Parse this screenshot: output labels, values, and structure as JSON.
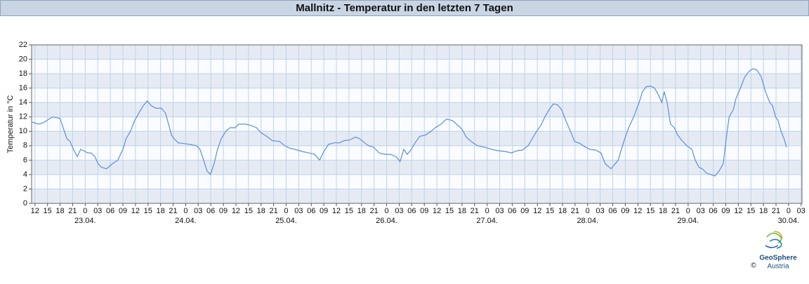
{
  "chart_data": {
    "type": "line",
    "title": "Mallnitz - Temperatur in den letzten 7 Tagen",
    "y_label": "Temperatur in °C",
    "color": "#5b8ee0",
    "grid": true,
    "band_color": "#e6ebf3",
    "grid_color": "#bcd2ec",
    "xlim": [
      11.2,
      195.2
    ],
    "ylim": [
      0,
      22
    ],
    "yticks": [
      0,
      2,
      4,
      6,
      8,
      10,
      12,
      14,
      16,
      18,
      20,
      22
    ],
    "xticks": [
      12,
      15,
      18,
      21,
      {
        "value": 24,
        "label": "0"
      },
      {
        "value": 27,
        "label": "03"
      },
      {
        "value": 30,
        "label": "06"
      },
      {
        "value": 33,
        "label": "09"
      },
      {
        "value": 36,
        "label": "12"
      },
      {
        "value": 39,
        "label": "15"
      },
      {
        "value": 42,
        "label": "18"
      },
      {
        "value": 45,
        "label": "21"
      },
      {
        "value": 48,
        "label": "0"
      },
      {
        "value": 51,
        "label": "03"
      },
      {
        "value": 54,
        "label": "06"
      },
      {
        "value": 57,
        "label": "09"
      },
      {
        "value": 60,
        "label": "12"
      },
      {
        "value": 63,
        "label": "15"
      },
      {
        "value": 66,
        "label": "18"
      },
      {
        "value": 69,
        "label": "21"
      },
      {
        "value": 72,
        "label": "0"
      },
      {
        "value": 75,
        "label": "03"
      },
      {
        "value": 78,
        "label": "06"
      },
      {
        "value": 81,
        "label": "09"
      },
      {
        "value": 84,
        "label": "12"
      },
      {
        "value": 87,
        "label": "15"
      },
      {
        "value": 90,
        "label": "18"
      },
      {
        "value": 93,
        "label": "21"
      },
      {
        "value": 96,
        "label": "0"
      },
      {
        "value": 99,
        "label": "03"
      },
      {
        "value": 102,
        "label": "06"
      },
      {
        "value": 105,
        "label": "09"
      },
      {
        "value": 108,
        "label": "12"
      },
      {
        "value": 111,
        "label": "15"
      },
      {
        "value": 114,
        "label": "18"
      },
      {
        "value": 117,
        "label": "21"
      },
      {
        "value": 120,
        "label": "0"
      },
      {
        "value": 123,
        "label": "03"
      },
      {
        "value": 126,
        "label": "06"
      },
      {
        "value": 129,
        "label": "09"
      },
      {
        "value": 132,
        "label": "12"
      },
      {
        "value": 135,
        "label": "15"
      },
      {
        "value": 138,
        "label": "18"
      },
      {
        "value": 141,
        "label": "21"
      },
      {
        "value": 144,
        "label": "0"
      },
      {
        "value": 147,
        "label": "03"
      },
      {
        "value": 150,
        "label": "06"
      },
      {
        "value": 153,
        "label": "09"
      },
      {
        "value": 156,
        "label": "12"
      },
      {
        "value": 159,
        "label": "15"
      },
      {
        "value": 162,
        "label": "18"
      },
      {
        "value": 165,
        "label": "21"
      },
      {
        "value": 168,
        "label": "0"
      },
      {
        "value": 171,
        "label": "03"
      },
      {
        "value": 174,
        "label": "06"
      },
      {
        "value": 177,
        "label": "09"
      },
      {
        "value": 180,
        "label": "12"
      },
      {
        "value": 183,
        "label": "15"
      },
      {
        "value": 186,
        "label": "18"
      },
      {
        "value": 189,
        "label": "21"
      },
      {
        "value": 192,
        "label": "0"
      },
      {
        "value": 195,
        "label": "03"
      }
    ],
    "date_labels": [
      {
        "value": 24,
        "label": "23.04."
      },
      {
        "value": 48,
        "label": "24.04."
      },
      {
        "value": 72,
        "label": "25.04."
      },
      {
        "value": 96,
        "label": "26.04."
      },
      {
        "value": 120,
        "label": "27.04."
      },
      {
        "value": 144,
        "label": "28.04."
      },
      {
        "value": 168,
        "label": "29.04."
      },
      {
        "value": 192,
        "label": "30.04."
      }
    ],
    "x": [
      11.2,
      12.8,
      14.0,
      16.2,
      18.0,
      19.6,
      20.4,
      21.2,
      22.1,
      22.9,
      23.7,
      24.6,
      25.4,
      26.3,
      27.1,
      27.9,
      29.1,
      30.5,
      31.8,
      33.0,
      33.8,
      34.8,
      35.8,
      36.8,
      37.8,
      38.8,
      39.9,
      40.9,
      42.2,
      43.2,
      43.9,
      44.6,
      45.2,
      46.2,
      47.6,
      48.9,
      50.6,
      51.4,
      52.3,
      53.1,
      53.9,
      54.8,
      55.6,
      56.5,
      57.6,
      58.6,
      59.8,
      60.7,
      62.3,
      63.7,
      64.9,
      66.0,
      67.4,
      68.7,
      70.4,
      71.7,
      72.7,
      74.1,
      75.8,
      77.4,
      78.8,
      80.0,
      80.8,
      82.1,
      83.5,
      84.8,
      85.8,
      87.2,
      88.5,
      89.5,
      90.5,
      91.7,
      92.9,
      94.2,
      95.6,
      96.9,
      98.2,
      99.2,
      100.1,
      100.9,
      101.9,
      102.9,
      103.9,
      105.3,
      106.6,
      107.6,
      109.0,
      110.3,
      111.7,
      112.7,
      114.0,
      115.0,
      116.4,
      117.7,
      119.4,
      121.1,
      122.7,
      124.4,
      125.8,
      127.1,
      128.4,
      129.8,
      130.8,
      131.8,
      132.8,
      133.8,
      134.8,
      135.8,
      136.8,
      137.8,
      138.8,
      139.9,
      140.9,
      142.2,
      143.2,
      144.6,
      145.9,
      147.2,
      148.2,
      149.6,
      151.3,
      152.6,
      153.8,
      155.0,
      156.3,
      157.1,
      158.0,
      159.0,
      160.0,
      161.0,
      161.7,
      162.3,
      163.0,
      163.8,
      164.7,
      165.5,
      166.4,
      167.7,
      168.9,
      169.7,
      170.6,
      171.4,
      172.4,
      173.4,
      174.4,
      175.4,
      176.4,
      177.1,
      177.8,
      178.8,
      179.4,
      180.5,
      181.5,
      182.5,
      183.5,
      184.5,
      185.5,
      186.5,
      187.5,
      188.2,
      188.9,
      189.5,
      190.2,
      190.9,
      191.5
    ],
    "values": [
      11.3,
      11.0,
      11.2,
      12.0,
      11.8,
      9.0,
      8.6,
      7.5,
      6.5,
      7.5,
      7.3,
      7.0,
      7.0,
      6.5,
      5.5,
      5.0,
      4.8,
      5.5,
      6.0,
      7.5,
      9.0,
      10.0,
      11.5,
      12.5,
      13.5,
      14.2,
      13.5,
      13.2,
      13.2,
      12.5,
      11.0,
      9.5,
      9.0,
      8.4,
      8.3,
      8.2,
      8.0,
      7.5,
      6.0,
      4.5,
      4.0,
      5.5,
      7.5,
      9.0,
      10.0,
      10.5,
      10.5,
      11.0,
      11.0,
      10.8,
      10.5,
      9.8,
      9.3,
      8.7,
      8.6,
      8.0,
      7.7,
      7.5,
      7.2,
      7.0,
      6.8,
      6.0,
      7.0,
      8.2,
      8.4,
      8.4,
      8.7,
      8.8,
      9.2,
      9.0,
      8.5,
      8.0,
      7.8,
      7.0,
      6.8,
      6.8,
      6.5,
      5.8,
      7.5,
      6.8,
      7.5,
      8.5,
      9.3,
      9.5,
      10.0,
      10.5,
      11.0,
      11.7,
      11.5,
      11.0,
      10.3,
      9.2,
      8.5,
      8.0,
      7.8,
      7.5,
      7.3,
      7.2,
      7.0,
      7.3,
      7.4,
      8.0,
      9.0,
      10.0,
      10.8,
      12.0,
      13.0,
      13.8,
      13.7,
      13.0,
      11.5,
      10.0,
      8.6,
      8.3,
      7.9,
      7.5,
      7.4,
      7.0,
      5.5,
      4.8,
      6.0,
      8.5,
      10.5,
      12.0,
      14.0,
      15.5,
      16.2,
      16.3,
      16.0,
      15.0,
      14.0,
      15.5,
      14.0,
      11.0,
      10.5,
      9.5,
      8.8,
      8.0,
      7.5,
      6.0,
      5.0,
      4.8,
      4.2,
      4.0,
      3.8,
      4.5,
      5.5,
      9.0,
      12.0,
      13.0,
      14.5,
      16.0,
      17.5,
      18.3,
      18.7,
      18.5,
      17.5,
      15.5,
      14.0,
      13.5,
      12.0,
      11.5,
      10.0,
      9.0,
      7.8
    ]
  },
  "logo": {
    "name": "GeoSphere",
    "sub": "Austria",
    "copyright": "©"
  }
}
